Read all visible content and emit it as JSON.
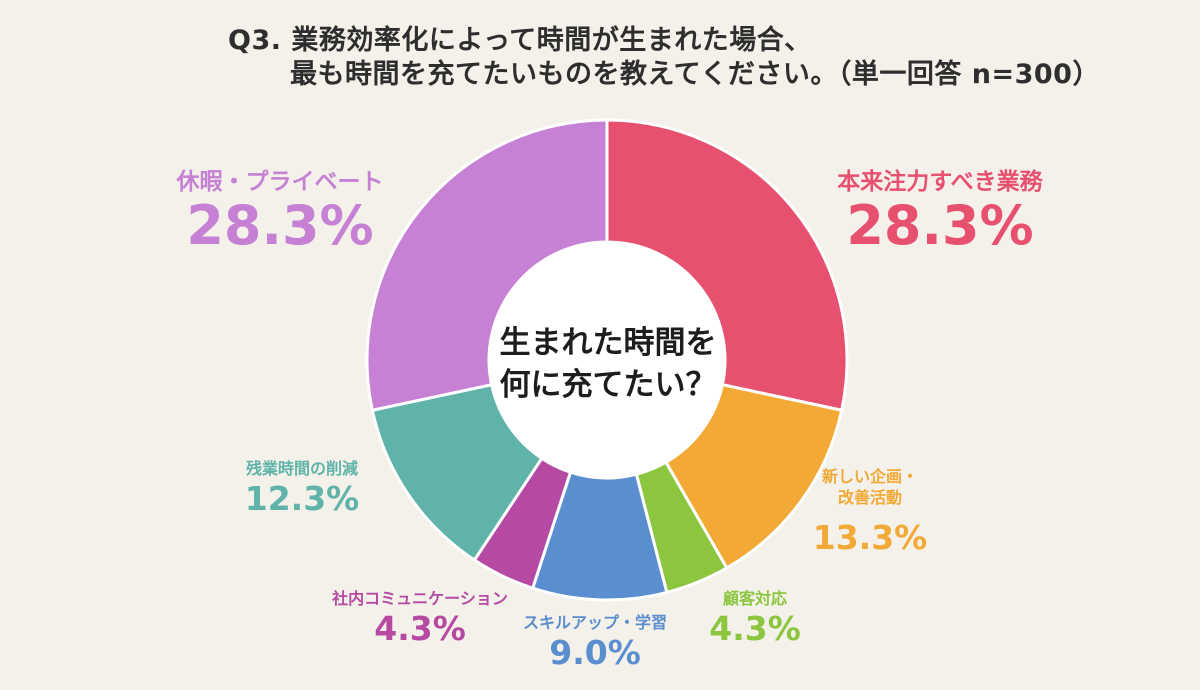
{
  "title": {
    "line1": "Q3. 業務効率化によって時間が生まれた場合、",
    "line2": "最も時間を充てたいものを教えてください。（単一回答 n=300）"
  },
  "center": {
    "line1": "生まれた時間を",
    "line2": "何に充てたい？"
  },
  "chart_data": {
    "type": "pie",
    "donut": true,
    "start_angle": "12 o'clock, clockwise",
    "slices": [
      {
        "label": "本来注力すべき業務",
        "value": 28.3,
        "display": "28.3%",
        "color": "#e8506f"
      },
      {
        "label": "新しい企画・改善活動",
        "value": 13.3,
        "display": "13.3%",
        "color": "#f2a935"
      },
      {
        "label": "顧客対応",
        "value": 4.3,
        "display": "4.3%",
        "color": "#8cc63f"
      },
      {
        "label": "スキルアップ・学習",
        "value": 9.0,
        "display": "9.0%",
        "color": "#5a8ecf"
      },
      {
        "label": "社内コミュニケーション",
        "value": 4.3,
        "display": "4.3%",
        "color": "#b64aa3"
      },
      {
        "label": "残業時間の削減",
        "value": 12.3,
        "display": "12.3%",
        "color": "#5fb3a9"
      },
      {
        "label": "休暇・プライベート",
        "value": 28.3,
        "display": "28.3%",
        "color": "#c680d4"
      }
    ]
  }
}
